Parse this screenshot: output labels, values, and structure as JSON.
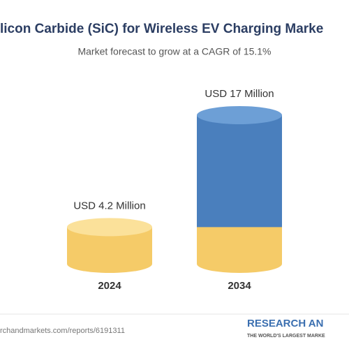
{
  "chart_data": {
    "type": "cylinder",
    "title": "licon Carbide (SiC) for Wireless EV Charging Marke",
    "subtitle": "Market forecast to grow at a CAGR of 15.1%",
    "categories": [
      "2024",
      "2034"
    ],
    "values": [
      4.2,
      17
    ],
    "value_labels": [
      "USD 4.2 Million",
      "USD 17 Million"
    ],
    "colors": [
      "#f5cb68",
      "#4a7fbd"
    ],
    "source": "rchandmarkets.com/reports/6191311",
    "brand": "RESEARCH AN",
    "brand_tagline": "THE WORLD'S LARGEST MARKE"
  }
}
